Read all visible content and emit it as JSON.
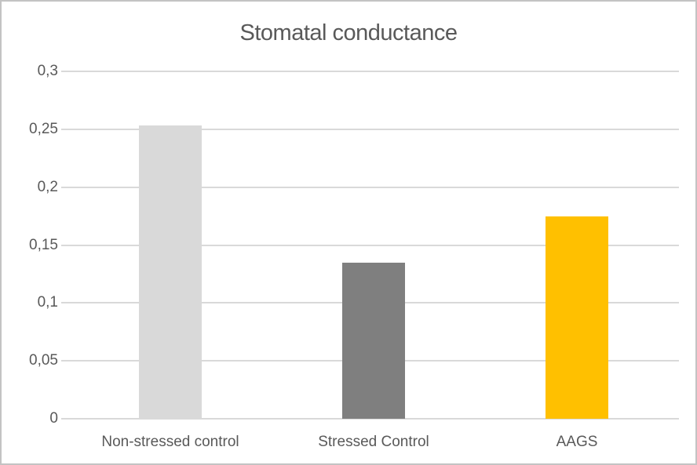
{
  "chart_data": {
    "type": "bar",
    "title": "Stomatal conductance",
    "categories": [
      "Non-stressed control",
      "Stressed Control",
      "AAGS"
    ],
    "values": [
      0.253,
      0.135,
      0.175
    ],
    "bar_colors": [
      "#d9d9d9",
      "#7f7f7f",
      "#ffc000"
    ],
    "xlabel": "",
    "ylabel": "",
    "ylim": [
      0,
      0.3
    ],
    "y_ticks": [
      0,
      0.05,
      0.1,
      0.15,
      0.2,
      0.25,
      0.3
    ],
    "y_tick_labels": [
      "0",
      "0,05",
      "0,1",
      "0,15",
      "0,2",
      "0,25",
      "0,3"
    ],
    "decimal_separator": ",",
    "grid": "horizontal",
    "legend_position": "none",
    "colors": {
      "gridline": "#d9d9d9",
      "axis_line": "#d9d9d9",
      "text": "#595959",
      "frame_border": "#c3c3c3",
      "background": "#ffffff"
    }
  }
}
